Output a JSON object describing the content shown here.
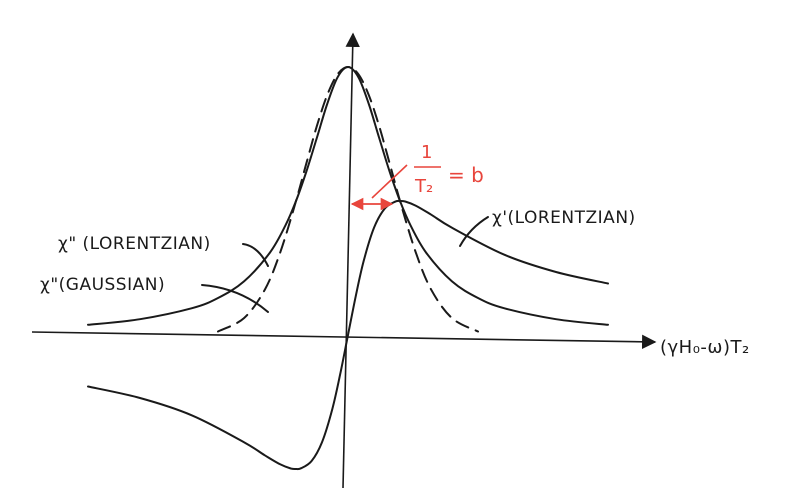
{
  "chart_data": {
    "type": "line",
    "title": "",
    "xlabel": "(γH₀-ω)T₂",
    "ylabel": "",
    "xlim": [
      -5.5,
      5.5
    ],
    "ylim": [
      -1.0,
      1.25
    ],
    "grid": false,
    "series": [
      {
        "name": "χ\" (LORENTZIAN)",
        "style": "solid",
        "x": [
          -5,
          -4,
          -3,
          -2.5,
          -2,
          -1.5,
          -1.2,
          -1,
          -0.8,
          -0.6,
          -0.4,
          -0.2,
          0,
          0.2,
          0.4,
          0.6,
          0.8,
          1,
          1.2,
          1.5,
          2,
          2.5,
          3,
          4,
          5
        ],
        "y": [
          0.038,
          0.059,
          0.1,
          0.138,
          0.2,
          0.308,
          0.41,
          0.5,
          0.61,
          0.735,
          0.862,
          0.962,
          1.0,
          0.962,
          0.862,
          0.735,
          0.61,
          0.5,
          0.41,
          0.308,
          0.2,
          0.138,
          0.1,
          0.059,
          0.038
        ]
      },
      {
        "name": "χ\"(GAUSSIAN)",
        "style": "dashed",
        "x": [
          -2.5,
          -2,
          -1.6,
          -1.3,
          -1,
          -0.8,
          -0.6,
          -0.4,
          -0.2,
          0,
          0.2,
          0.4,
          0.6,
          0.8,
          1,
          1.3,
          1.6,
          2,
          2.5
        ],
        "y": [
          0.013,
          0.063,
          0.169,
          0.31,
          0.5,
          0.641,
          0.779,
          0.895,
          0.973,
          1.0,
          0.973,
          0.895,
          0.779,
          0.641,
          0.5,
          0.31,
          0.169,
          0.063,
          0.013
        ]
      },
      {
        "name": "χ'(LORENTZIAN)",
        "style": "solid",
        "x": [
          -5,
          -4,
          -3,
          -2,
          -1.6,
          -1.3,
          -1.1,
          -1,
          -0.9,
          -0.7,
          -0.5,
          -0.3,
          -0.15,
          0,
          0.15,
          0.3,
          0.5,
          0.7,
          0.9,
          1,
          1.1,
          1.3,
          1.6,
          2,
          3,
          4,
          5
        ],
        "y": [
          -0.192,
          -0.235,
          -0.3,
          -0.4,
          -0.449,
          -0.483,
          -0.498,
          -0.5,
          -0.497,
          -0.47,
          -0.4,
          -0.275,
          -0.146,
          0,
          0.146,
          0.275,
          0.4,
          0.47,
          0.497,
          0.5,
          0.498,
          0.483,
          0.449,
          0.4,
          0.3,
          0.235,
          0.192
        ]
      }
    ],
    "annotations": [
      {
        "text_num": "1",
        "text_den": "T₂",
        "text_rhs": "= b",
        "color": "#e8453c"
      }
    ]
  }
}
